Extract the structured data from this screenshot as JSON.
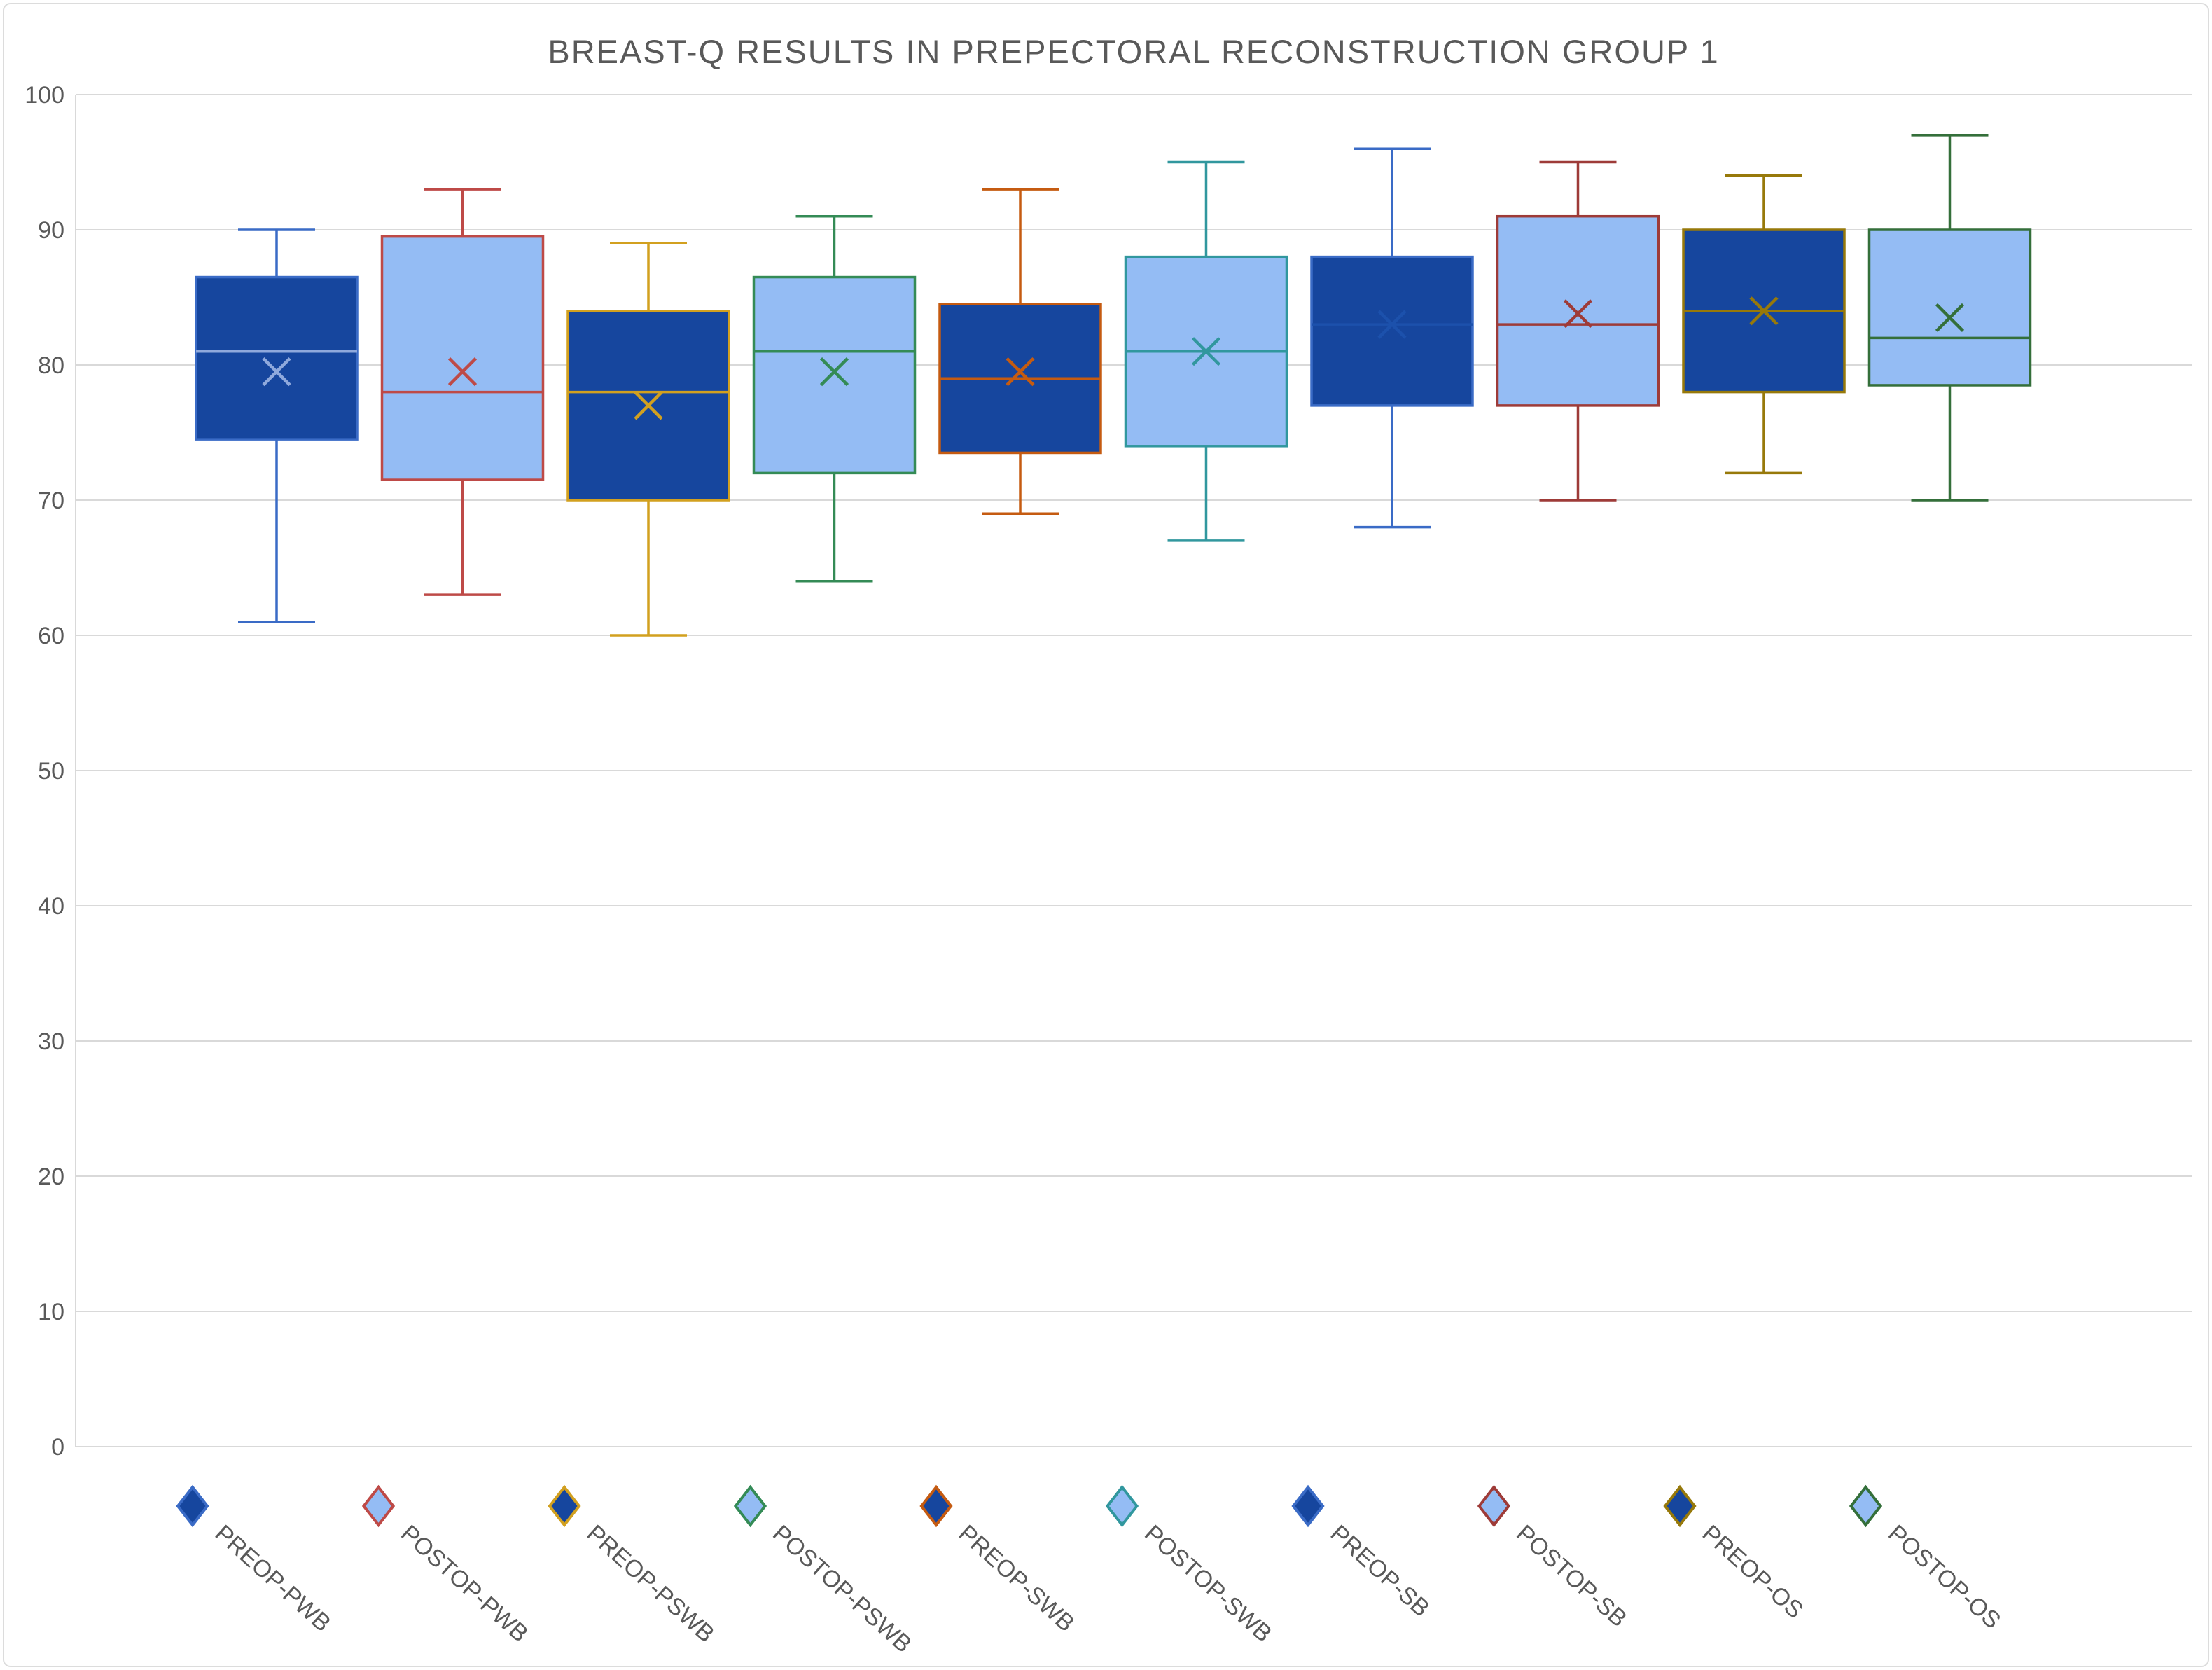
{
  "title": "BREAST-Q RESULTS IN PREPECTORAL RECONSTRUCTION GROUP 1",
  "colors": {
    "background": "#ffffff",
    "gridline": "#d9d9d9",
    "axis_line": "#d9d9d9",
    "text": "#595959",
    "dark_fill": "#16469e",
    "light_fill": "#94bcf4"
  },
  "y_axis": {
    "min": 0,
    "max": 100,
    "tick_step": 10,
    "tick_labels": [
      "100",
      "90",
      "80",
      "70",
      "60",
      "50",
      "40",
      "30",
      "20",
      "10",
      "0"
    ]
  },
  "chart_data": {
    "type": "boxplot",
    "title": "BREAST-Q RESULTS IN PREPECTORAL RECONSTRUCTION GROUP 1",
    "ylim": [
      0,
      100
    ],
    "yticks": [
      0,
      10,
      20,
      30,
      40,
      50,
      60,
      70,
      80,
      90,
      100
    ],
    "grid": true,
    "legend_position": "bottom",
    "categories": [
      "PREOP-PWB",
      "POSTOP-PWB",
      "PREOP-PSWB",
      "POSTOP-PSWB",
      "PREOP-SWB",
      "POSTOP-SWB",
      "PREOP-SB",
      "POSTOP-SB",
      "PREOP-OS",
      "POSTOP-OS"
    ],
    "series": [
      {
        "name": "PREOP-PWB",
        "low": 61,
        "q1": 74.5,
        "median": 81,
        "q3": 86.5,
        "high": 90,
        "mean": 79.5,
        "fill": "#16469e",
        "stroke": "#3a6bc6",
        "inner": "#8fa9dc"
      },
      {
        "name": "POSTOP-PWB",
        "low": 63,
        "q1": 71.5,
        "median": 78,
        "q3": 89.5,
        "high": 93,
        "mean": 79.5,
        "fill": "#94bcf4",
        "stroke": "#be4a47"
      },
      {
        "name": "PREOP-PSWB",
        "low": 60,
        "q1": 70,
        "median": 78,
        "q3": 84,
        "high": 89,
        "mean": 77,
        "fill": "#16469e",
        "stroke": "#d2a01f"
      },
      {
        "name": "POSTOP-PSWB",
        "low": 64,
        "q1": 72,
        "median": 81,
        "q3": 86.5,
        "high": 91,
        "mean": 79.5,
        "fill": "#94bcf4",
        "stroke": "#348b56"
      },
      {
        "name": "PREOP-SWB",
        "low": 69,
        "q1": 73.5,
        "median": 79,
        "q3": 84.5,
        "high": 93,
        "mean": 79.5,
        "fill": "#16469e",
        "stroke": "#c55b11"
      },
      {
        "name": "POSTOP-SWB",
        "low": 67,
        "q1": 74,
        "median": 81,
        "q3": 88,
        "high": 95,
        "mean": 81,
        "fill": "#94bcf4",
        "stroke": "#31979e"
      },
      {
        "name": "PREOP-SB",
        "low": 68,
        "q1": 77,
        "median": 83,
        "q3": 88,
        "high": 96,
        "mean": 83,
        "fill": "#16469e",
        "stroke": "#3a6bc6",
        "inner": "#1c51ac"
      },
      {
        "name": "POSTOP-SB",
        "low": 70,
        "q1": 77,
        "median": 83,
        "q3": 91,
        "high": 95,
        "mean": 83.8,
        "fill": "#94bcf4",
        "stroke": "#9e3b38"
      },
      {
        "name": "PREOP-OS",
        "low": 72,
        "q1": 78,
        "median": 84,
        "q3": 90,
        "high": 94,
        "mean": 84,
        "fill": "#16469e",
        "stroke": "#97790a"
      },
      {
        "name": "POSTOP-OS",
        "low": 70,
        "q1": 78.5,
        "median": 82,
        "q3": 90,
        "high": 97,
        "mean": 83.5,
        "fill": "#94bcf4",
        "stroke": "#346f3a"
      }
    ]
  },
  "legend": {
    "items": [
      "PREOP-PWB",
      "POSTOP-PWB",
      "PREOP-PSWB",
      "POSTOP-PSWB",
      "PREOP-SWB",
      "POSTOP-SWB",
      "PREOP-SB",
      "POSTOP-SB",
      "PREOP-OS",
      "POSTOP-OS"
    ]
  }
}
